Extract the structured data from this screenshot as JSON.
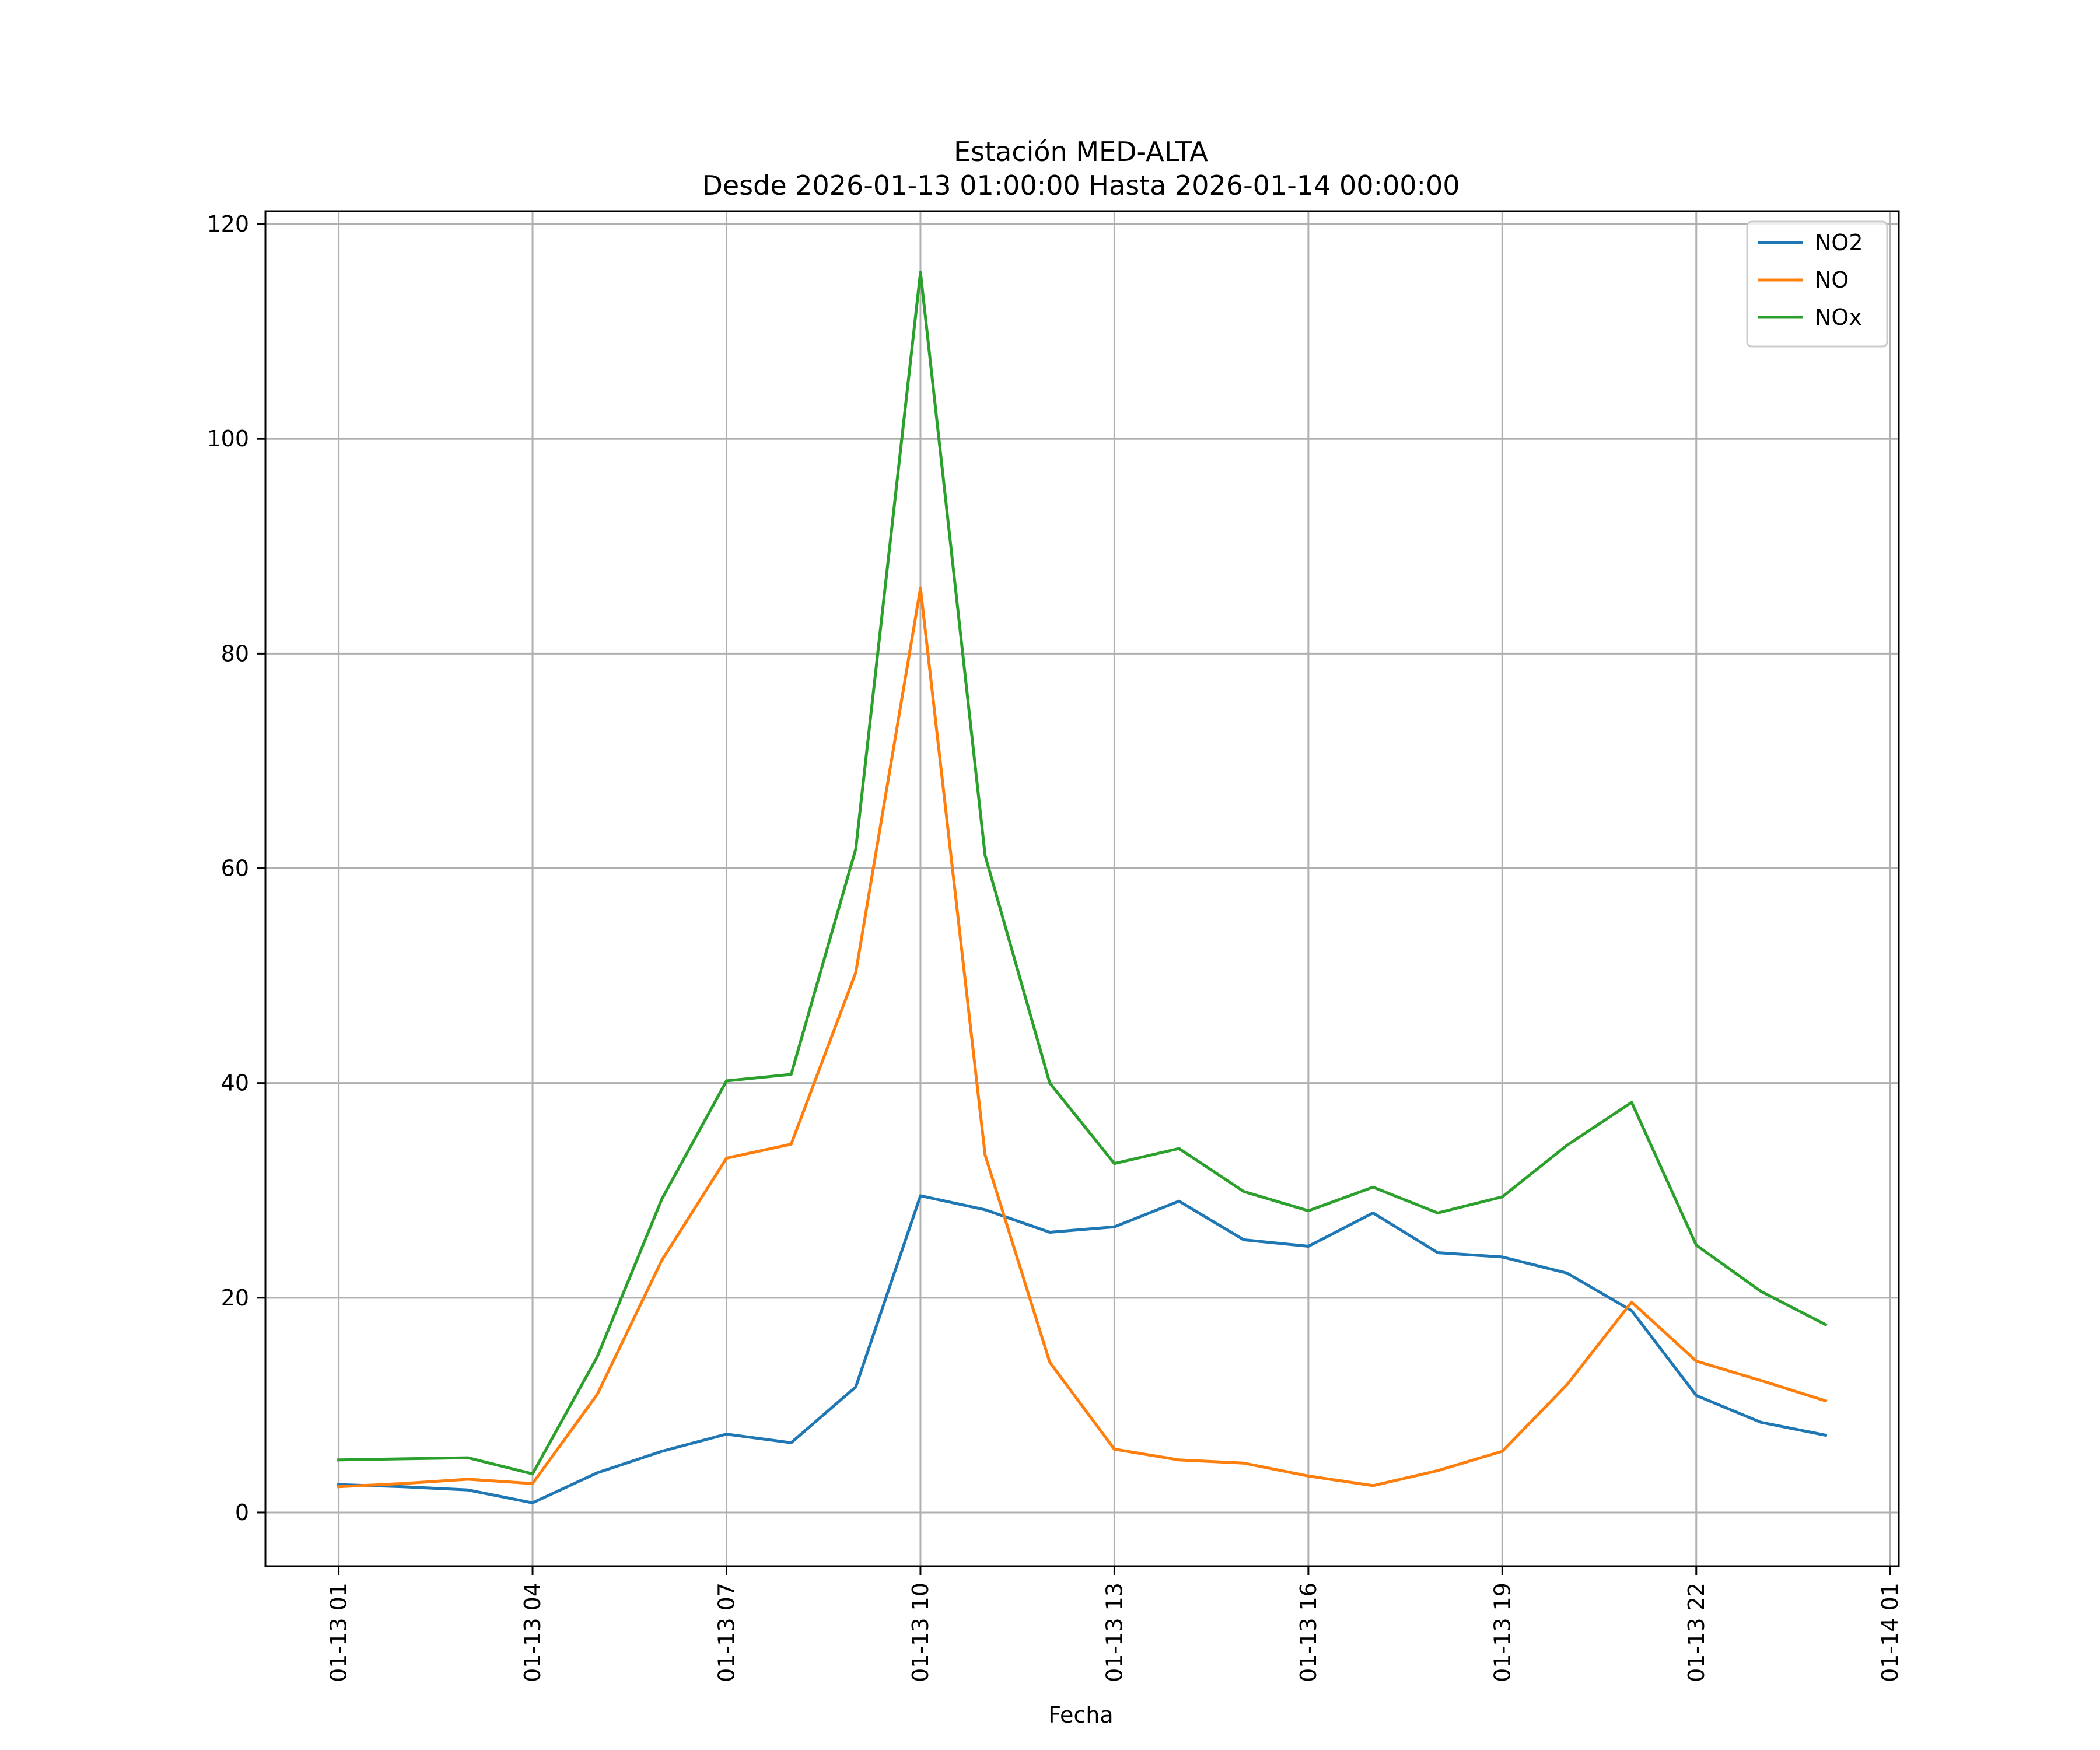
{
  "chart_data": {
    "type": "line",
    "title": "Estación MED-ALTA",
    "subtitle": "Desde 2026-01-13 01:00:00 Hasta 2026-01-14 00:00:00",
    "xlabel": "Fecha",
    "ylabel": "",
    "x": [
      "2026-01-13 01:00",
      "2026-01-13 02:00",
      "2026-01-13 03:00",
      "2026-01-13 04:00",
      "2026-01-13 05:00",
      "2026-01-13 06:00",
      "2026-01-13 07:00",
      "2026-01-13 08:00",
      "2026-01-13 09:00",
      "2026-01-13 10:00",
      "2026-01-13 11:00",
      "2026-01-13 12:00",
      "2026-01-13 13:00",
      "2026-01-13 14:00",
      "2026-01-13 15:00",
      "2026-01-13 16:00",
      "2026-01-13 17:00",
      "2026-01-13 18:00",
      "2026-01-13 19:00",
      "2026-01-13 20:00",
      "2026-01-13 21:00",
      "2026-01-13 22:00",
      "2026-01-13 23:00",
      "2026-01-14 00:00"
    ],
    "xlim": [
      "2026-01-12 23:52",
      "2026-01-14 01:08"
    ],
    "x_ticks": [
      {
        "value": "2026-01-13 01:00",
        "label": "01-13 01"
      },
      {
        "value": "2026-01-13 04:00",
        "label": "01-13 04"
      },
      {
        "value": "2026-01-13 07:00",
        "label": "01-13 07"
      },
      {
        "value": "2026-01-13 10:00",
        "label": "01-13 10"
      },
      {
        "value": "2026-01-13 13:00",
        "label": "01-13 13"
      },
      {
        "value": "2026-01-13 16:00",
        "label": "01-13 16"
      },
      {
        "value": "2026-01-13 19:00",
        "label": "01-13 19"
      },
      {
        "value": "2026-01-13 22:00",
        "label": "01-13 22"
      },
      {
        "value": "2026-01-14 01:00",
        "label": "01-14 01"
      }
    ],
    "ylim": [
      -5,
      121.2
    ],
    "y_ticks": [
      0,
      20,
      40,
      60,
      80,
      100,
      120
    ],
    "grid": true,
    "legend_position": "top-right",
    "series": [
      {
        "name": "NO2",
        "color": "#1f77b4",
        "values": [
          2.6,
          2.4,
          2.1,
          0.9,
          3.7,
          5.7,
          7.3,
          6.5,
          11.7,
          29.5,
          28.2,
          26.1,
          26.6,
          29.0,
          25.4,
          24.8,
          27.9,
          24.2,
          23.8,
          22.3,
          18.8,
          10.9,
          8.4,
          7.2
        ]
      },
      {
        "name": "NO",
        "color": "#ff7f0e",
        "values": [
          2.4,
          2.7,
          3.1,
          2.7,
          11.0,
          23.5,
          33.0,
          34.3,
          50.3,
          86.1,
          33.3,
          14.0,
          5.9,
          4.9,
          4.6,
          3.4,
          2.5,
          3.9,
          5.7,
          11.9,
          19.6,
          14.1,
          12.3,
          10.4
        ]
      },
      {
        "name": "NOx",
        "color": "#2ca02c",
        "values": [
          4.9,
          5.0,
          5.1,
          3.6,
          14.5,
          29.2,
          40.2,
          40.8,
          61.8,
          115.5,
          61.2,
          40.0,
          32.5,
          33.9,
          29.9,
          28.1,
          30.3,
          27.9,
          29.4,
          34.2,
          38.2,
          24.9,
          20.6,
          17.5
        ]
      }
    ]
  }
}
